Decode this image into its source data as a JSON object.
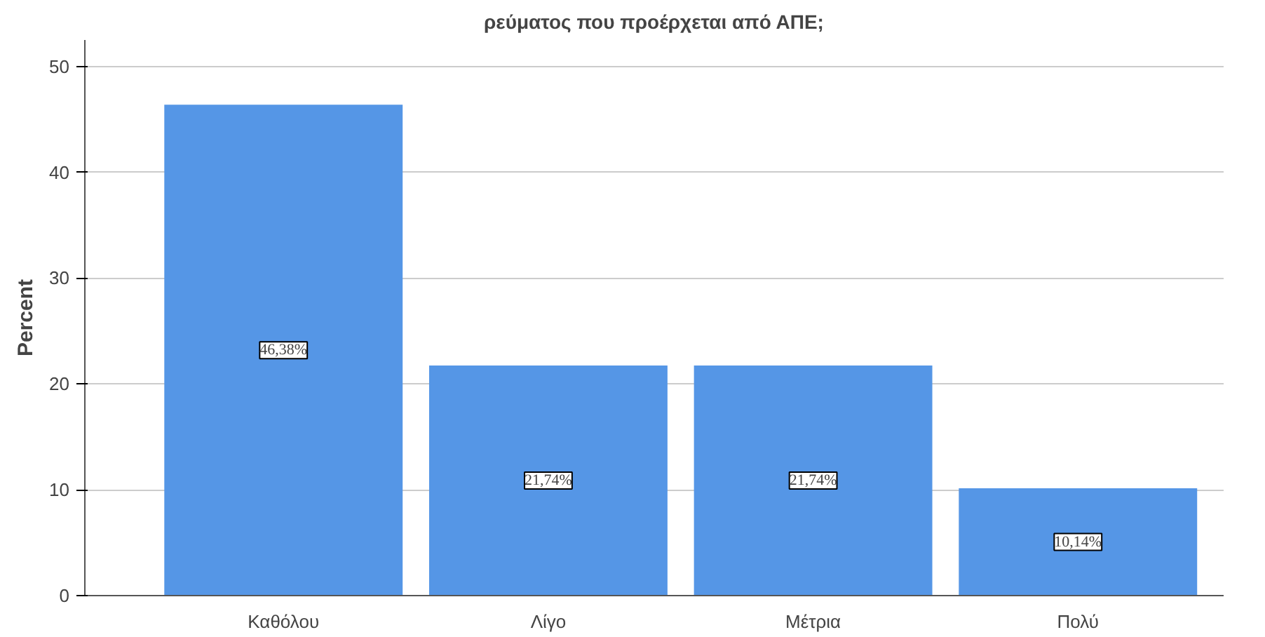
{
  "chart_data": {
    "type": "bar",
    "title": "ρεύματος που προέρχεται από ΑΠΕ;",
    "ylabel": "Percent",
    "categories": [
      "Καθόλου",
      "Λίγο",
      "Μέτρια",
      "Πολύ"
    ],
    "values": [
      46.38,
      21.74,
      21.74,
      10.14
    ],
    "value_labels": [
      "46,38%",
      "21,74%",
      "21,74%",
      "10,14%"
    ],
    "color": "#5596e6",
    "ylim": [
      0,
      52.5
    ],
    "yticks": [
      0,
      10,
      20,
      30,
      40,
      50
    ],
    "grid": "y"
  }
}
